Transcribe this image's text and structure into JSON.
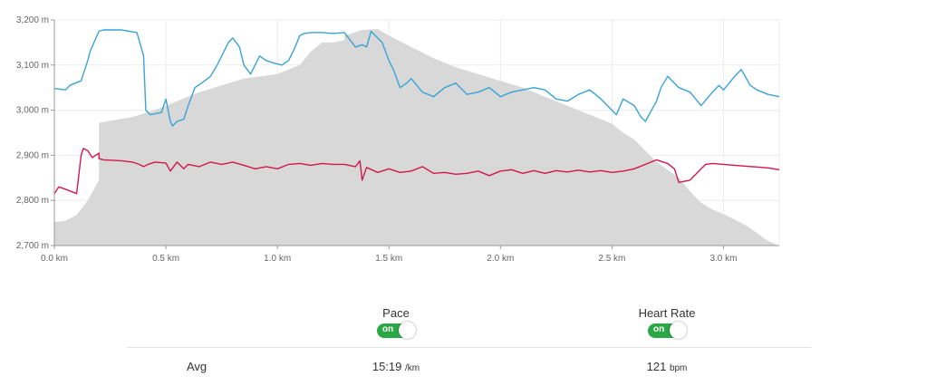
{
  "chart_data": {
    "type": "line",
    "x_unit": "km",
    "xlim": [
      0,
      3.25
    ],
    "ylim": [
      2700,
      3200
    ],
    "x_ticks": [
      {
        "value": 0.0,
        "label": "0.0 km"
      },
      {
        "value": 0.5,
        "label": "0.5 km"
      },
      {
        "value": 1.0,
        "label": "1.0 km"
      },
      {
        "value": 1.5,
        "label": "1.5 km"
      },
      {
        "value": 2.0,
        "label": "2.0 km"
      },
      {
        "value": 2.5,
        "label": "2.5 km"
      },
      {
        "value": 3.0,
        "label": "3.0 km"
      }
    ],
    "y_ticks": [
      {
        "value": 2700,
        "label": "2,700 m"
      },
      {
        "value": 2800,
        "label": "2,800 m"
      },
      {
        "value": 2900,
        "label": "2,900 m"
      },
      {
        "value": 3000,
        "label": "3,000 m"
      },
      {
        "value": 3100,
        "label": "3,100 m"
      },
      {
        "value": 3200,
        "label": "3,200 m"
      }
    ],
    "grid": true,
    "series": [
      {
        "kind": "area",
        "color": "#d8d8d8",
        "x": [
          0,
          0.05,
          0.1,
          0.15,
          0.2,
          0.2,
          0.35,
          0.45,
          0.55,
          0.65,
          0.75,
          0.85,
          1.0,
          1.1,
          1.15,
          1.2,
          1.25,
          1.3,
          1.3,
          1.38,
          1.45,
          1.5,
          1.6,
          1.7,
          1.8,
          1.9,
          2.0,
          2.1,
          2.2,
          2.3,
          2.4,
          2.5,
          2.55,
          2.6,
          2.65,
          2.7,
          2.8,
          2.85,
          2.9,
          2.95,
          3.0,
          3.1,
          3.2,
          3.25
        ],
        "values": [
          2752,
          2755,
          2768,
          2800,
          2845,
          2972,
          2985,
          3000,
          3020,
          3040,
          3055,
          3070,
          3080,
          3100,
          3130,
          3150,
          3150,
          3155,
          3165,
          3178,
          3180,
          3165,
          3140,
          3115,
          3095,
          3080,
          3065,
          3050,
          3030,
          3010,
          2990,
          2970,
          2950,
          2935,
          2910,
          2885,
          2850,
          2820,
          2795,
          2780,
          2770,
          2745,
          2710,
          2700
        ]
      },
      {
        "kind": "line",
        "color": "#3aa3d6",
        "x": [
          0,
          0.05,
          0.07,
          0.12,
          0.15,
          0.16,
          0.2,
          0.22,
          0.3,
          0.37,
          0.4,
          0.41,
          0.43,
          0.48,
          0.5,
          0.52,
          0.53,
          0.55,
          0.58,
          0.6,
          0.63,
          0.66,
          0.7,
          0.73,
          0.76,
          0.78,
          0.8,
          0.83,
          0.85,
          0.88,
          0.92,
          0.95,
          0.98,
          1.02,
          1.05,
          1.08,
          1.1,
          1.12,
          1.15,
          1.2,
          1.25,
          1.3,
          1.35,
          1.38,
          1.4,
          1.42,
          1.47,
          1.5,
          1.52,
          1.55,
          1.58,
          1.6,
          1.65,
          1.7,
          1.75,
          1.8,
          1.85,
          1.9,
          1.95,
          2.0,
          2.05,
          2.1,
          2.15,
          2.2,
          2.25,
          2.3,
          2.35,
          2.4,
          2.45,
          2.5,
          2.52,
          2.55,
          2.6,
          2.63,
          2.65,
          2.7,
          2.72,
          2.75,
          2.8,
          2.85,
          2.9,
          2.95,
          2.98,
          3.0,
          3.05,
          3.08,
          3.12,
          3.15,
          3.2,
          3.25
        ],
        "values": [
          3048,
          3045,
          3055,
          3065,
          3110,
          3130,
          3175,
          3178,
          3178,
          3172,
          3120,
          3000,
          2990,
          2995,
          3025,
          2975,
          2965,
          2975,
          2980,
          3010,
          3050,
          3060,
          3075,
          3100,
          3130,
          3150,
          3160,
          3140,
          3100,
          3080,
          3120,
          3110,
          3105,
          3100,
          3110,
          3140,
          3165,
          3170,
          3172,
          3172,
          3170,
          3172,
          3140,
          3145,
          3140,
          3175,
          3150,
          3110,
          3090,
          3050,
          3060,
          3070,
          3040,
          3030,
          3050,
          3060,
          3035,
          3040,
          3050,
          3030,
          3040,
          3045,
          3050,
          3045,
          3025,
          3020,
          3035,
          3045,
          3025,
          3000,
          2990,
          3025,
          3010,
          2985,
          2975,
          3020,
          3050,
          3075,
          3050,
          3040,
          3010,
          3040,
          3055,
          3045,
          3075,
          3090,
          3055,
          3045,
          3035,
          3030
        ]
      },
      {
        "kind": "line",
        "color": "#d1174f",
        "x": [
          0,
          0.02,
          0.05,
          0.1,
          0.12,
          0.13,
          0.15,
          0.17,
          0.2,
          0.2,
          0.22,
          0.3,
          0.35,
          0.38,
          0.4,
          0.42,
          0.45,
          0.5,
          0.52,
          0.55,
          0.58,
          0.6,
          0.65,
          0.7,
          0.75,
          0.8,
          0.85,
          0.9,
          0.95,
          1.0,
          1.05,
          1.1,
          1.15,
          1.2,
          1.25,
          1.3,
          1.35,
          1.37,
          1.38,
          1.4,
          1.45,
          1.5,
          1.55,
          1.6,
          1.65,
          1.7,
          1.75,
          1.8,
          1.85,
          1.9,
          1.95,
          2.0,
          2.05,
          2.1,
          2.15,
          2.2,
          2.25,
          2.3,
          2.35,
          2.4,
          2.45,
          2.5,
          2.55,
          2.6,
          2.65,
          2.7,
          2.75,
          2.78,
          2.8,
          2.85,
          2.9,
          2.92,
          2.95,
          3.0,
          3.05,
          3.1,
          3.15,
          3.2,
          3.25
        ],
        "values": [
          2815,
          2830,
          2825,
          2815,
          2900,
          2915,
          2910,
          2895,
          2905,
          2893,
          2890,
          2888,
          2885,
          2880,
          2875,
          2880,
          2885,
          2883,
          2865,
          2885,
          2870,
          2880,
          2875,
          2885,
          2880,
          2885,
          2878,
          2870,
          2875,
          2870,
          2880,
          2882,
          2878,
          2882,
          2880,
          2880,
          2875,
          2888,
          2845,
          2873,
          2862,
          2870,
          2862,
          2865,
          2875,
          2860,
          2862,
          2858,
          2860,
          2865,
          2855,
          2865,
          2868,
          2860,
          2866,
          2860,
          2866,
          2863,
          2867,
          2863,
          2866,
          2862,
          2865,
          2870,
          2880,
          2890,
          2882,
          2870,
          2840,
          2845,
          2870,
          2880,
          2882,
          2880,
          2878,
          2876,
          2874,
          2872,
          2868
        ]
      }
    ]
  },
  "toggles": {
    "pace": {
      "label": "Pace",
      "state": "on"
    },
    "heart_rate": {
      "label": "Heart Rate",
      "state": "on"
    }
  },
  "stats": {
    "avg_label": "Avg",
    "pace_value": "15:19",
    "pace_unit": "/km",
    "hr_value": "121",
    "hr_unit": "bpm"
  },
  "colors": {
    "toggle_on": "#2aa845"
  }
}
